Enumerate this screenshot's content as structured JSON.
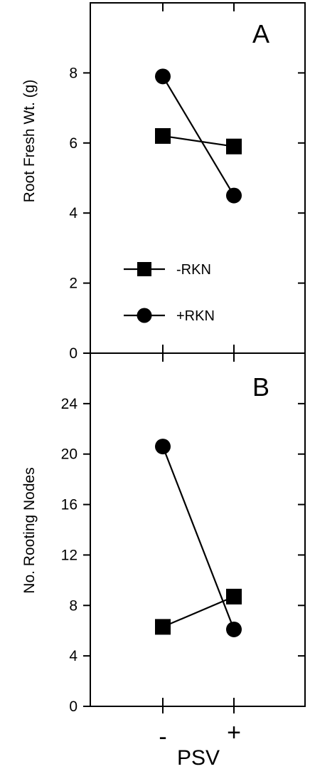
{
  "chart_data": [
    {
      "type": "line",
      "panel_label": "A",
      "ylabel": "Root Fresh Wt. (g)",
      "xlabel": "PSV",
      "categories": [
        "-",
        "+"
      ],
      "ylim": [
        0,
        10
      ],
      "yticks": [
        "0",
        "2",
        "4",
        "6",
        "8"
      ],
      "series": [
        {
          "name": "-RKN",
          "marker": "square",
          "values": [
            6.2,
            5.9
          ]
        },
        {
          "name": "+RKN",
          "marker": "circle",
          "values": [
            7.9,
            4.5
          ]
        }
      ],
      "legend": {
        "placement": "center-left"
      },
      "grid": false
    },
    {
      "type": "line",
      "panel_label": "B",
      "ylabel": "No. Rooting Nodes",
      "xlabel": "PSV",
      "categories": [
        "-",
        "+"
      ],
      "ylim": [
        0,
        28
      ],
      "yticks": [
        "0",
        "4",
        "8",
        "12",
        "16",
        "20",
        "24"
      ],
      "series": [
        {
          "name": "-RKN",
          "marker": "square",
          "values": [
            6.3,
            8.7
          ]
        },
        {
          "name": "+RKN",
          "marker": "circle",
          "values": [
            20.6,
            6.1
          ]
        }
      ],
      "grid": false
    }
  ],
  "x_axis": {
    "categories": [
      "-",
      "+"
    ],
    "title": "PSV"
  }
}
